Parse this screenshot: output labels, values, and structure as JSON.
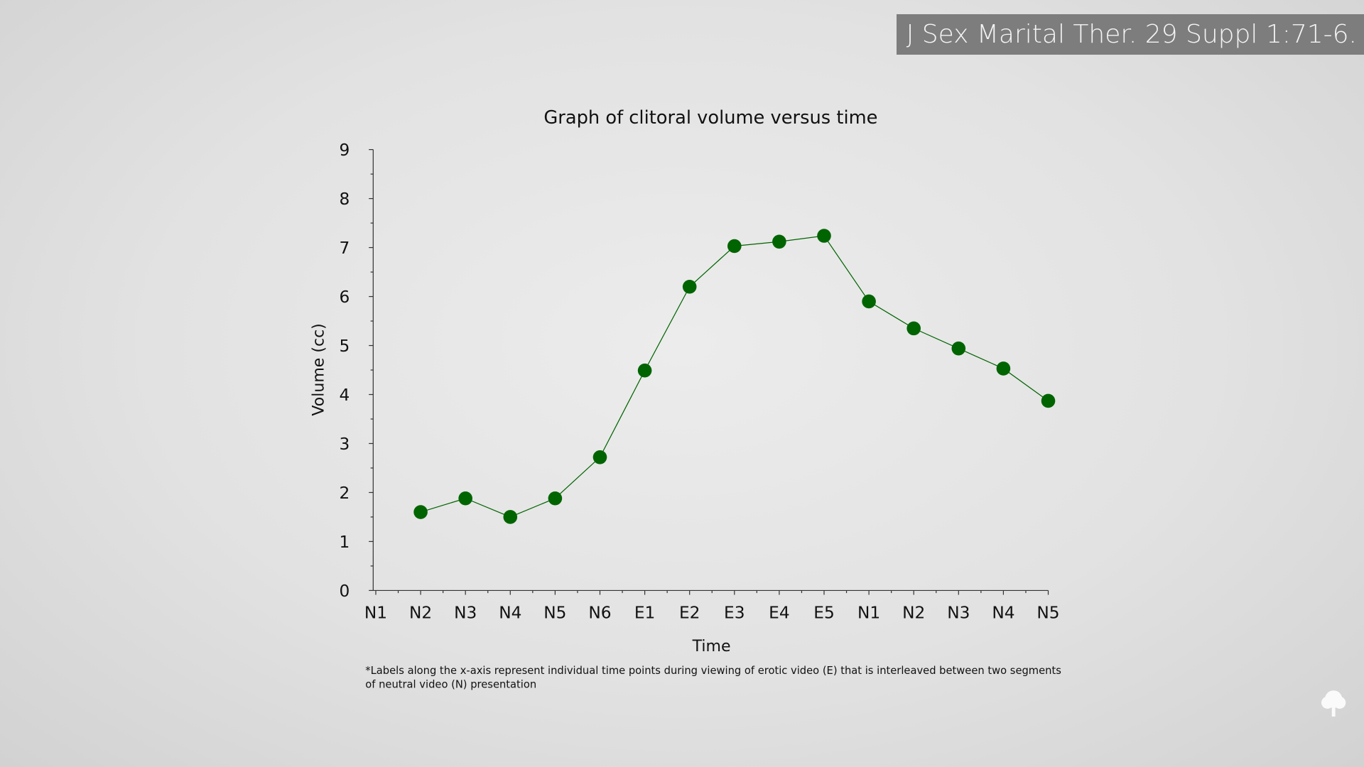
{
  "citation": "J Sex Marital Ther. 29 Suppl 1:71-6.",
  "chart_data": {
    "type": "line",
    "title": "Graph of clitoral volume versus time",
    "xlabel": "Time",
    "ylabel": "Volume (cc)",
    "ylim": [
      0,
      9
    ],
    "yticks": [
      "0",
      "1",
      "2",
      "3",
      "4",
      "5",
      "6",
      "7",
      "8",
      "9"
    ],
    "categories": [
      "N1",
      "N2",
      "N3",
      "N4",
      "N5",
      "N6",
      "E1",
      "E2",
      "E3",
      "E4",
      "E5",
      "N1",
      "N2",
      "N3",
      "N4",
      "N5"
    ],
    "series": [
      {
        "name": "Volume",
        "color": "#006400",
        "values": [
          null,
          1.6,
          1.88,
          1.5,
          1.88,
          2.72,
          4.49,
          6.2,
          7.03,
          7.12,
          7.24,
          5.9,
          5.35,
          4.94,
          4.53,
          3.87
        ]
      }
    ],
    "grid": false,
    "footnote": "*Labels along the x-axis represent individual time points during viewing of erotic video (E) that is interleaved between two segments of neutral video (N) presentation",
    "footnote_line1": "*Labels along the x-axis represent individual time points during viewing of erotic video (E) that is interleaved between two segments",
    "footnote_line2": "of neutral video (N) presentation"
  }
}
